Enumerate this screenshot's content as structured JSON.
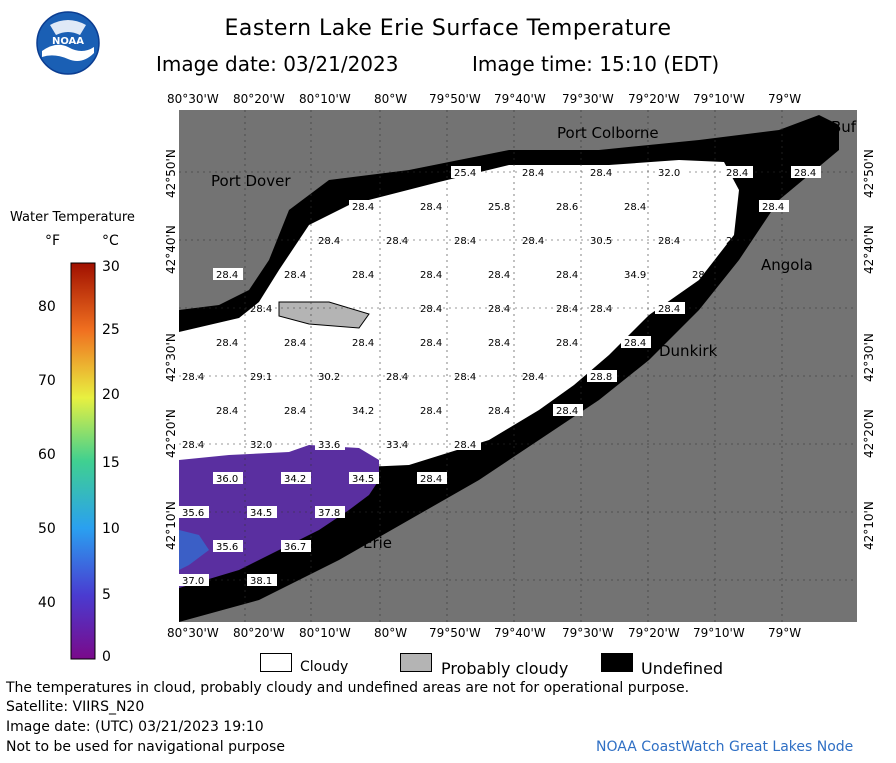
{
  "header": {
    "title": "Eastern Lake Erie Surface Temperature",
    "image_date": "Image date: 03/21/2023",
    "image_time": "Image time: 15:10 (EDT)",
    "logo_text": "NOAA"
  },
  "axes": {
    "lon_ticks": [
      "80°30'W",
      "80°20'W",
      "80°10'W",
      "80°W",
      "79°50'W",
      "79°40'W",
      "79°30'W",
      "79°20'W",
      "79°10'W",
      "79°W"
    ],
    "lat_ticks": [
      "42°50'N",
      "42°40'N",
      "42°30'N",
      "42°20'N",
      "42°10'N"
    ]
  },
  "places": [
    "Port Colborne",
    "Port Dover",
    "Angola",
    "Dunkirk",
    "Erie",
    "Buf"
  ],
  "legend": {
    "title": "Water Temperature",
    "unit_f": "°F",
    "unit_c": "°C",
    "f_ticks": [
      "80",
      "70",
      "60",
      "50",
      "40"
    ],
    "c_ticks": [
      "30",
      "25",
      "20",
      "15",
      "10",
      "5",
      "0"
    ],
    "categories": [
      "Cloudy",
      "Probably cloudy",
      "Undefined"
    ]
  },
  "temperatures": [
    "25.4",
    "28.4",
    "32.0",
    "25.8",
    "28.6",
    "30.5",
    "34.9",
    "28.8",
    "29.1",
    "30.2",
    "34.2",
    "33.6",
    "33.4",
    "36.0",
    "34.5",
    "35.6",
    "37.8",
    "36.7",
    "38.1",
    "37.0"
  ],
  "footer": {
    "disclaimer": "The temperatures in cloud, probably cloudy and undefined areas are not for operational purpose.",
    "satellite": "Satellite: VIIRS_N20",
    "utc": "Image date: (UTC) 03/21/2023  19:10",
    "nav": "Not to be used for navigational purpose",
    "credit": "NOAA CoastWatch Great Lakes Node"
  },
  "colors": {
    "land": "#737373",
    "cloud": "#ffffff",
    "prob_cloud": "#b4b4b4",
    "undefined": "#000000",
    "warm_water": "#5a2fa0"
  }
}
